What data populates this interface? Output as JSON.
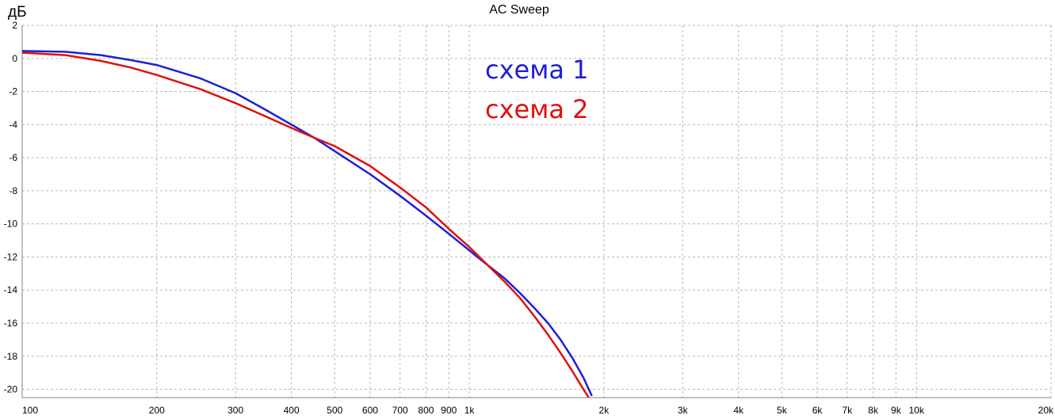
{
  "chart_data": {
    "type": "line",
    "title": "AC Sweep",
    "ylabel": "дБ",
    "xlabel": "",
    "xscale": "log",
    "xlim": [
      100,
      20000
    ],
    "ylim": [
      -20.5,
      2
    ],
    "grid": true,
    "x_ticks": [
      {
        "v": 100,
        "label": "100"
      },
      {
        "v": 200,
        "label": "200"
      },
      {
        "v": 300,
        "label": "300"
      },
      {
        "v": 400,
        "label": "400"
      },
      {
        "v": 500,
        "label": "500"
      },
      {
        "v": 600,
        "label": "600"
      },
      {
        "v": 700,
        "label": "700"
      },
      {
        "v": 800,
        "label": "800"
      },
      {
        "v": 900,
        "label": "900"
      },
      {
        "v": 1000,
        "label": "1k"
      },
      {
        "v": 2000,
        "label": "2k"
      },
      {
        "v": 3000,
        "label": "3k"
      },
      {
        "v": 4000,
        "label": "4k"
      },
      {
        "v": 5000,
        "label": "5k"
      },
      {
        "v": 6000,
        "label": "6k"
      },
      {
        "v": 7000,
        "label": "7k"
      },
      {
        "v": 8000,
        "label": "8k"
      },
      {
        "v": 9000,
        "label": "9k"
      },
      {
        "v": 10000,
        "label": "10k"
      },
      {
        "v": 20000,
        "label": "20k"
      }
    ],
    "y_ticks": [
      {
        "v": 2,
        "label": "2"
      },
      {
        "v": 0,
        "label": "0"
      },
      {
        "v": -2,
        "label": "-2"
      },
      {
        "v": -4,
        "label": "-4"
      },
      {
        "v": -6,
        "label": "-6"
      },
      {
        "v": -8,
        "label": "-8"
      },
      {
        "v": -10,
        "label": "-10"
      },
      {
        "v": -12,
        "label": "-12"
      },
      {
        "v": -14,
        "label": "-14"
      },
      {
        "v": -16,
        "label": "-16"
      },
      {
        "v": -18,
        "label": "-18"
      },
      {
        "v": -20,
        "label": "-20"
      }
    ],
    "legend": "top-center",
    "series": [
      {
        "name": "схема 1",
        "color": "#1f1fd6",
        "x": [
          100,
          125,
          150,
          175,
          200,
          250,
          300,
          350,
          400,
          450,
          500,
          600,
          700,
          800,
          900,
          1000,
          1100,
          1200,
          1300,
          1400,
          1500,
          1600,
          1700,
          1800,
          1880
        ],
        "y": [
          0.45,
          0.4,
          0.2,
          -0.1,
          -0.4,
          -1.2,
          -2.1,
          -3.1,
          -4.0,
          -4.8,
          -5.6,
          -7.0,
          -8.3,
          -9.5,
          -10.6,
          -11.6,
          -12.5,
          -13.3,
          -14.2,
          -15.1,
          -16.0,
          -17.0,
          -18.1,
          -19.3,
          -20.4
        ]
      },
      {
        "name": "схема 2",
        "color": "#e01010",
        "x": [
          100,
          125,
          150,
          175,
          200,
          250,
          300,
          350,
          400,
          450,
          500,
          600,
          700,
          800,
          900,
          1000,
          1100,
          1200,
          1300,
          1400,
          1500,
          1600,
          1700,
          1800,
          1850
        ],
        "y": [
          0.35,
          0.2,
          -0.15,
          -0.55,
          -1.0,
          -1.85,
          -2.7,
          -3.5,
          -4.2,
          -4.8,
          -5.3,
          -6.5,
          -7.8,
          -9.0,
          -10.3,
          -11.4,
          -12.5,
          -13.5,
          -14.5,
          -15.6,
          -16.7,
          -17.8,
          -18.9,
          -20.0,
          -20.5
        ]
      }
    ]
  }
}
